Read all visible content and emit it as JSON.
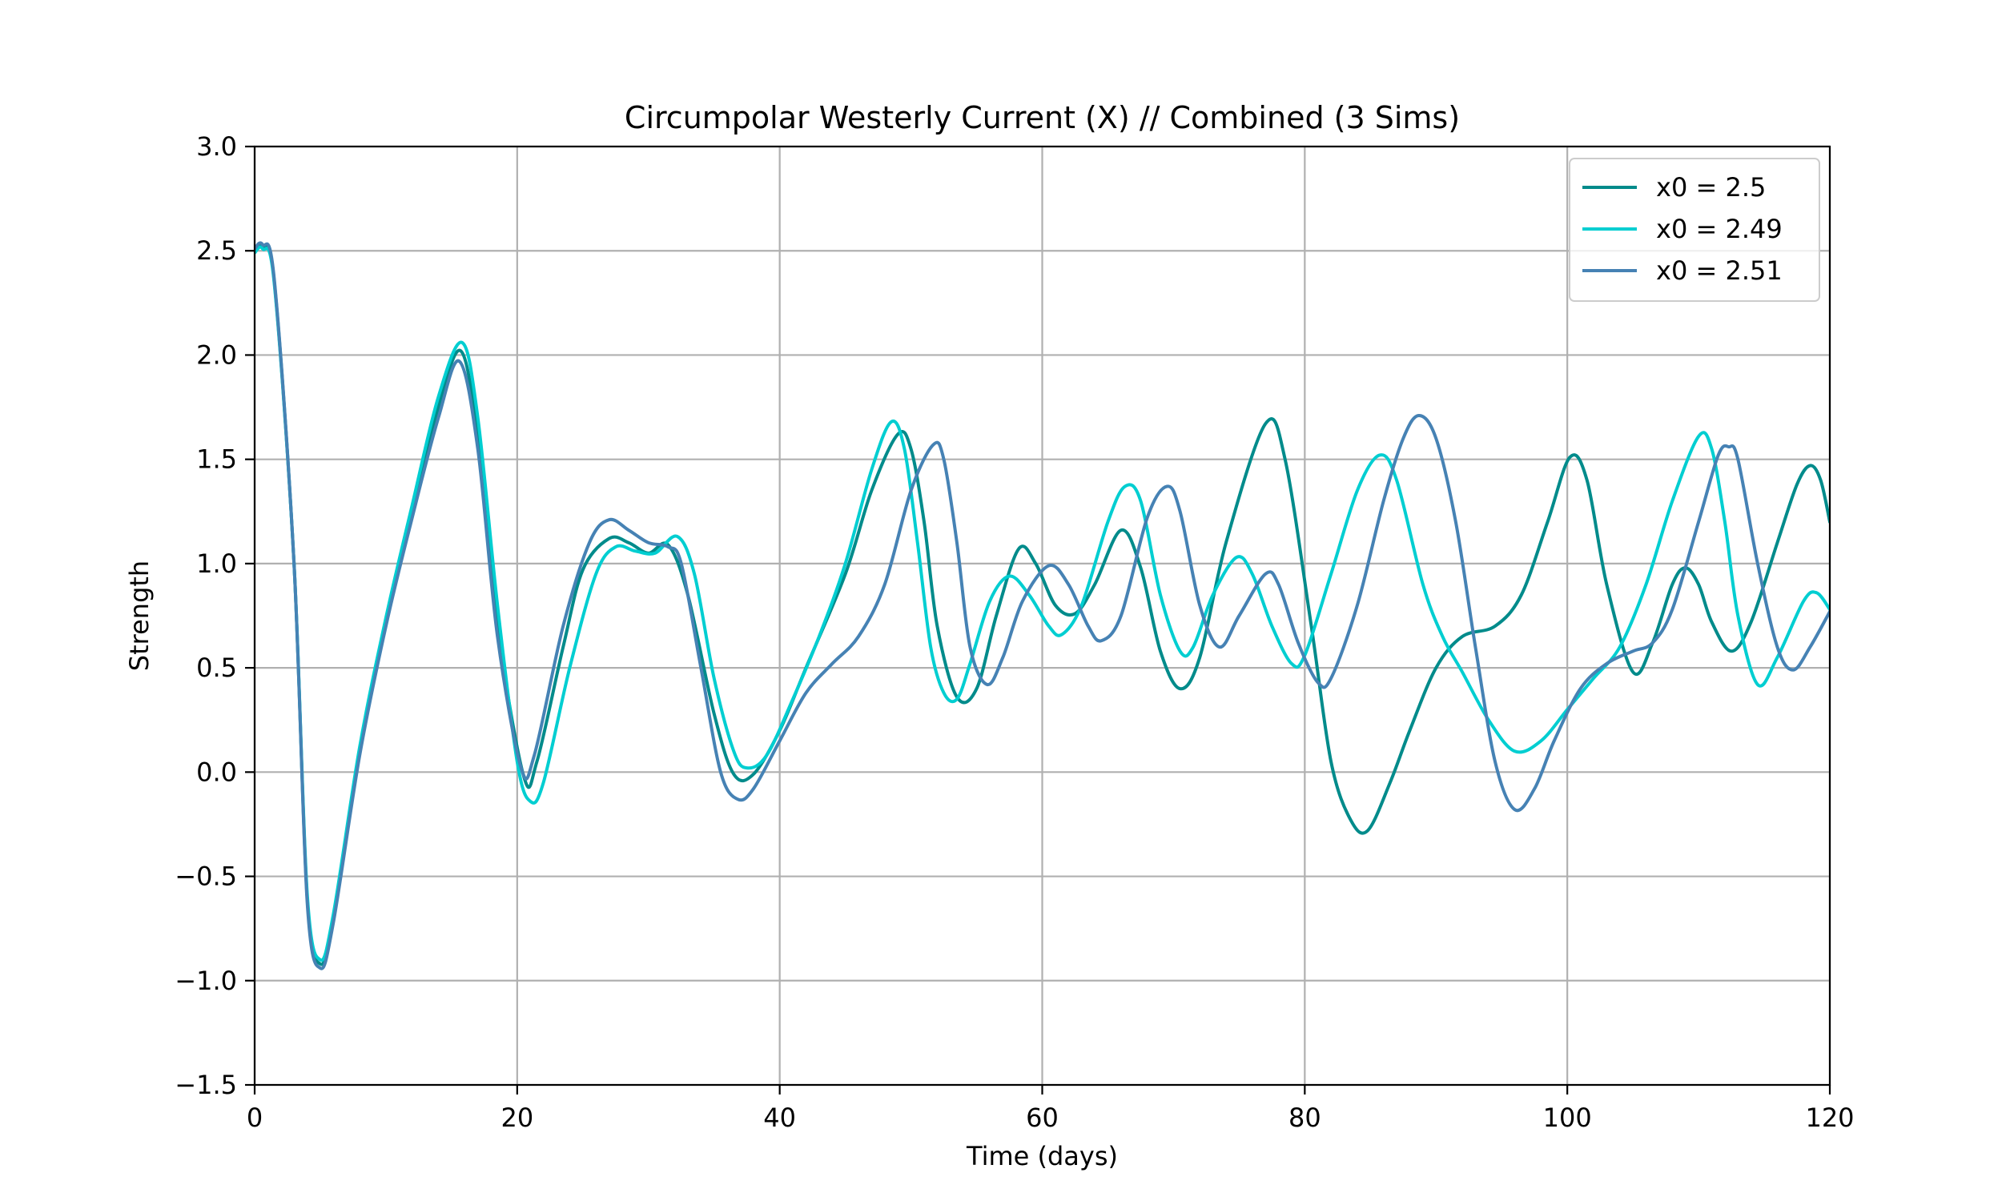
{
  "chart_data": {
    "type": "line",
    "title": "Circumpolar Westerly Current (X) // Combined (3 Sims)",
    "xlabel": "Time (days)",
    "ylabel": "Strength",
    "xlim": [
      0,
      120
    ],
    "ylim": [
      -1.5,
      3.0
    ],
    "xticks": [
      0,
      20,
      40,
      60,
      80,
      100,
      120
    ],
    "xtick_labels": [
      "0",
      "20",
      "40",
      "60",
      "80",
      "100",
      "120"
    ],
    "yticks": [
      -1.5,
      -1.0,
      -0.5,
      0.0,
      0.5,
      1.0,
      1.5,
      2.0,
      2.5,
      3.0
    ],
    "ytick_labels": [
      "−1.5",
      "−1.0",
      "−0.5",
      "0.0",
      "0.5",
      "1.0",
      "1.5",
      "2.0",
      "2.5",
      "3.0"
    ],
    "grid": true,
    "legend_position": "top-right",
    "series": [
      {
        "name": "x0 = 2.5",
        "color": "#008b8b",
        "points": [
          [
            0,
            2.5
          ],
          [
            0.6,
            2.52
          ],
          [
            1.5,
            2.35
          ],
          [
            3,
            1.0
          ],
          [
            4,
            -0.6
          ],
          [
            5,
            -0.92
          ],
          [
            6,
            -0.7
          ],
          [
            8,
            0.1
          ],
          [
            10,
            0.72
          ],
          [
            12,
            1.25
          ],
          [
            14,
            1.75
          ],
          [
            15.7,
            2.02
          ],
          [
            17,
            1.6
          ],
          [
            18.5,
            0.7
          ],
          [
            20.5,
            -0.02
          ],
          [
            21.5,
            0.05
          ],
          [
            23.5,
            0.6
          ],
          [
            25,
            0.97
          ],
          [
            27,
            1.12
          ],
          [
            28.5,
            1.1
          ],
          [
            30,
            1.05
          ],
          [
            31.5,
            1.09
          ],
          [
            33,
            0.85
          ],
          [
            35,
            0.28
          ],
          [
            36.5,
            -0.01
          ],
          [
            38,
            -0.01
          ],
          [
            40,
            0.2
          ],
          [
            42,
            0.5
          ],
          [
            45,
            0.95
          ],
          [
            47,
            1.35
          ],
          [
            49,
            1.62
          ],
          [
            50,
            1.55
          ],
          [
            51,
            1.2
          ],
          [
            52,
            0.7
          ],
          [
            53.5,
            0.36
          ],
          [
            55,
            0.4
          ],
          [
            56.5,
            0.75
          ],
          [
            58.2,
            1.07
          ],
          [
            59.5,
            1.0
          ],
          [
            61,
            0.8
          ],
          [
            62.5,
            0.76
          ],
          [
            64,
            0.9
          ],
          [
            66,
            1.16
          ],
          [
            67.5,
            0.98
          ],
          [
            69,
            0.58
          ],
          [
            70.5,
            0.4
          ],
          [
            72,
            0.55
          ],
          [
            74,
            1.1
          ],
          [
            77,
            1.67
          ],
          [
            78.5,
            1.5
          ],
          [
            80.5,
            0.7
          ],
          [
            82,
            0.05
          ],
          [
            83.5,
            -0.23
          ],
          [
            84.8,
            -0.28
          ],
          [
            86.5,
            -0.05
          ],
          [
            88,
            0.2
          ],
          [
            90,
            0.5
          ],
          [
            92,
            0.65
          ],
          [
            94.5,
            0.7
          ],
          [
            96.5,
            0.85
          ],
          [
            98.5,
            1.2
          ],
          [
            100.2,
            1.51
          ],
          [
            101.5,
            1.4
          ],
          [
            103,
            0.9
          ],
          [
            105,
            0.48
          ],
          [
            106.5,
            0.62
          ],
          [
            108,
            0.9
          ],
          [
            109,
            0.98
          ],
          [
            110,
            0.9
          ],
          [
            111,
            0.72
          ],
          [
            112.5,
            0.58
          ],
          [
            114,
            0.72
          ],
          [
            116,
            1.1
          ],
          [
            117.5,
            1.38
          ],
          [
            118.5,
            1.47
          ],
          [
            119.3,
            1.4
          ],
          [
            120,
            1.2
          ]
        ]
      },
      {
        "name": "x0 = 2.49",
        "color": "#00ced1",
        "points": [
          [
            0,
            2.49
          ],
          [
            0.6,
            2.51
          ],
          [
            1.5,
            2.34
          ],
          [
            3,
            1.0
          ],
          [
            4,
            -0.58
          ],
          [
            5,
            -0.9
          ],
          [
            6,
            -0.68
          ],
          [
            8,
            0.12
          ],
          [
            10,
            0.74
          ],
          [
            12,
            1.28
          ],
          [
            14,
            1.8
          ],
          [
            15.8,
            2.06
          ],
          [
            17,
            1.7
          ],
          [
            18.5,
            0.8
          ],
          [
            20,
            0.05
          ],
          [
            21,
            -0.14
          ],
          [
            22,
            -0.05
          ],
          [
            24,
            0.5
          ],
          [
            26,
            0.95
          ],
          [
            27.5,
            1.08
          ],
          [
            29,
            1.06
          ],
          [
            30.5,
            1.05
          ],
          [
            32.2,
            1.13
          ],
          [
            33.5,
            0.95
          ],
          [
            35,
            0.45
          ],
          [
            36.5,
            0.1
          ],
          [
            37.5,
            0.02
          ],
          [
            39,
            0.08
          ],
          [
            41,
            0.35
          ],
          [
            43,
            0.65
          ],
          [
            45,
            1.0
          ],
          [
            47,
            1.45
          ],
          [
            48.5,
            1.68
          ],
          [
            49.5,
            1.55
          ],
          [
            50.5,
            1.1
          ],
          [
            51.5,
            0.6
          ],
          [
            52.5,
            0.38
          ],
          [
            53.5,
            0.35
          ],
          [
            54.5,
            0.52
          ],
          [
            56,
            0.82
          ],
          [
            57.5,
            0.94
          ],
          [
            59,
            0.85
          ],
          [
            60.5,
            0.7
          ],
          [
            61.5,
            0.66
          ],
          [
            63,
            0.8
          ],
          [
            65,
            1.2
          ],
          [
            66.3,
            1.37
          ],
          [
            67.5,
            1.3
          ],
          [
            69,
            0.85
          ],
          [
            70.5,
            0.58
          ],
          [
            71.5,
            0.6
          ],
          [
            73,
            0.85
          ],
          [
            74.8,
            1.03
          ],
          [
            76,
            0.95
          ],
          [
            77.5,
            0.7
          ],
          [
            79,
            0.52
          ],
          [
            80,
            0.56
          ],
          [
            82,
            0.95
          ],
          [
            84,
            1.35
          ],
          [
            85.7,
            1.52
          ],
          [
            87,
            1.4
          ],
          [
            89,
            0.9
          ],
          [
            90.5,
            0.65
          ],
          [
            92,
            0.48
          ],
          [
            94,
            0.25
          ],
          [
            96,
            0.1
          ],
          [
            98,
            0.15
          ],
          [
            100,
            0.3
          ],
          [
            102,
            0.45
          ],
          [
            104,
            0.6
          ],
          [
            106,
            0.9
          ],
          [
            108,
            1.3
          ],
          [
            110,
            1.61
          ],
          [
            111,
            1.55
          ],
          [
            112,
            1.2
          ],
          [
            113,
            0.75
          ],
          [
            114.5,
            0.42
          ],
          [
            116,
            0.55
          ],
          [
            118,
            0.82
          ],
          [
            119,
            0.86
          ],
          [
            120,
            0.78
          ]
        ]
      },
      {
        "name": "x0 = 2.51",
        "color": "#4682b4",
        "points": [
          [
            0,
            2.51
          ],
          [
            0.6,
            2.53
          ],
          [
            1.5,
            2.36
          ],
          [
            3,
            1.0
          ],
          [
            4,
            -0.62
          ],
          [
            5,
            -0.94
          ],
          [
            6,
            -0.72
          ],
          [
            8,
            0.08
          ],
          [
            10,
            0.7
          ],
          [
            12,
            1.22
          ],
          [
            14,
            1.7
          ],
          [
            15.6,
            1.97
          ],
          [
            17,
            1.55
          ],
          [
            18.5,
            0.65
          ],
          [
            20.3,
            0.02
          ],
          [
            21.3,
            0.08
          ],
          [
            23.5,
            0.7
          ],
          [
            25.5,
            1.1
          ],
          [
            27,
            1.21
          ],
          [
            28.5,
            1.16
          ],
          [
            30,
            1.1
          ],
          [
            31.5,
            1.08
          ],
          [
            32.5,
            1.0
          ],
          [
            34,
            0.5
          ],
          [
            35.5,
            0.0
          ],
          [
            36.8,
            -0.13
          ],
          [
            38,
            -0.08
          ],
          [
            40,
            0.15
          ],
          [
            42,
            0.38
          ],
          [
            44,
            0.52
          ],
          [
            46,
            0.65
          ],
          [
            48,
            0.9
          ],
          [
            50,
            1.35
          ],
          [
            51.7,
            1.57
          ],
          [
            52.5,
            1.5
          ],
          [
            53.5,
            1.1
          ],
          [
            54.5,
            0.6
          ],
          [
            55.8,
            0.42
          ],
          [
            57,
            0.55
          ],
          [
            58.5,
            0.82
          ],
          [
            60.5,
            0.99
          ],
          [
            62,
            0.9
          ],
          [
            63.5,
            0.7
          ],
          [
            64.5,
            0.63
          ],
          [
            66,
            0.75
          ],
          [
            68,
            1.22
          ],
          [
            69.5,
            1.37
          ],
          [
            70.5,
            1.25
          ],
          [
            72,
            0.8
          ],
          [
            73.5,
            0.6
          ],
          [
            75,
            0.75
          ],
          [
            77,
            0.95
          ],
          [
            78,
            0.9
          ],
          [
            79.5,
            0.62
          ],
          [
            81,
            0.43
          ],
          [
            82,
            0.45
          ],
          [
            84,
            0.8
          ],
          [
            86,
            1.3
          ],
          [
            87.5,
            1.6
          ],
          [
            88.7,
            1.71
          ],
          [
            90,
            1.6
          ],
          [
            91.5,
            1.2
          ],
          [
            93,
            0.6
          ],
          [
            94.5,
            0.05
          ],
          [
            96,
            -0.18
          ],
          [
            97.5,
            -0.08
          ],
          [
            99,
            0.15
          ],
          [
            101,
            0.4
          ],
          [
            103,
            0.52
          ],
          [
            105,
            0.58
          ],
          [
            106.5,
            0.62
          ],
          [
            108,
            0.78
          ],
          [
            110,
            1.2
          ],
          [
            111.5,
            1.52
          ],
          [
            112.3,
            1.56
          ],
          [
            113,
            1.5
          ],
          [
            114.5,
            1.0
          ],
          [
            116,
            0.6
          ],
          [
            117.2,
            0.49
          ],
          [
            118.5,
            0.6
          ],
          [
            120,
            0.77
          ]
        ]
      }
    ]
  }
}
